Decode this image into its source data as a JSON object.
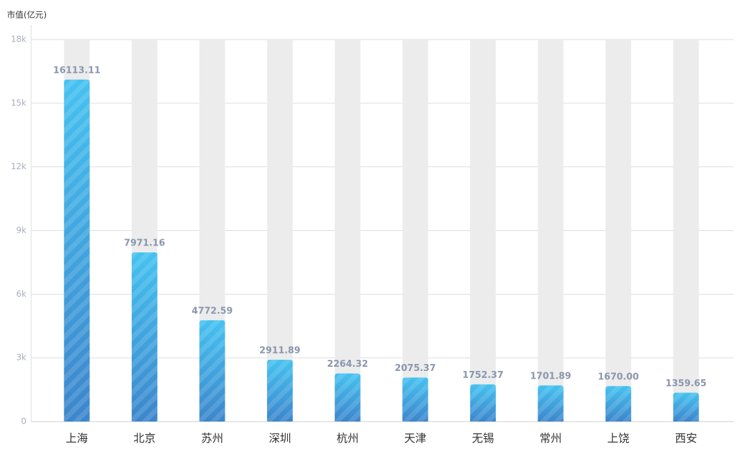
{
  "chart_data": {
    "type": "bar",
    "y_axis_label": "市值(亿元)",
    "categories": [
      "上海",
      "北京",
      "苏州",
      "深圳",
      "杭州",
      "天津",
      "无锡",
      "常州",
      "上饶",
      "西安"
    ],
    "values": [
      16113.11,
      7971.16,
      4772.59,
      2911.89,
      2264.32,
      2075.37,
      1752.37,
      1701.89,
      1670.0,
      1359.65
    ],
    "value_labels": [
      "16113.11",
      "7971.16",
      "4772.59",
      "2911.89",
      "2264.32",
      "2075.37",
      "1752.37",
      "1701.89",
      "1670.00",
      "1359.65"
    ],
    "color": "#3fa9e6",
    "ylim": [
      0,
      18000
    ],
    "yticks": [
      0,
      {
        "value": 3000,
        "label": "3k"
      },
      {
        "value": 6000,
        "label": "6k"
      },
      {
        "value": 9000,
        "label": "9k"
      },
      {
        "value": 12000,
        "label": "12k"
      },
      {
        "value": 15000,
        "label": "15k"
      },
      {
        "value": 18000,
        "label": "18k"
      }
    ],
    "grid": true
  }
}
